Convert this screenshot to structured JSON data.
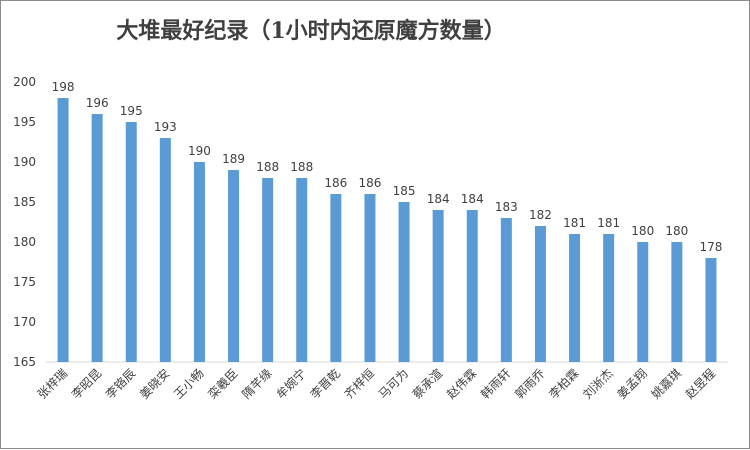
{
  "chart_data": {
    "type": "bar",
    "title": "大堆最好纪录（1小时内还原魔方数量）",
    "categories": [
      "张梓瑞",
      "李昭昆",
      "李铬辰",
      "姜晓安",
      "王小畅",
      "栾羲臣",
      "隋芊缘",
      "牟婉宁",
      "李晋乾",
      "齐梓恒",
      "马可为",
      "蔡承渲",
      "赵伟霖",
      "韩雨轩",
      "郭雨乔",
      "李柏霖",
      "刘淅杰",
      "姜孟翔",
      "姚嘉琪",
      "赵昱程"
    ],
    "values": [
      198,
      196,
      195,
      193,
      190,
      189,
      188,
      188,
      186,
      186,
      185,
      184,
      184,
      183,
      182,
      181,
      181,
      180,
      180,
      178
    ],
    "ylim": [
      165,
      200
    ],
    "yticks": [
      165,
      170,
      175,
      180,
      185,
      190,
      195,
      200
    ],
    "xlabel": "",
    "ylabel": "",
    "grid": false,
    "bar_color": "#5b9bd5"
  }
}
